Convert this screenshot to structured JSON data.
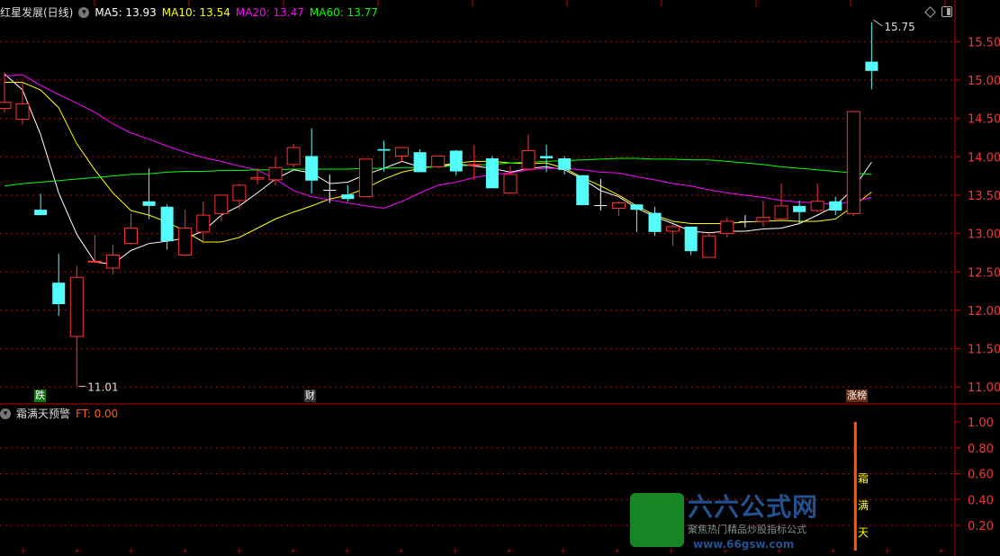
{
  "header": {
    "title": "红星发展(日线)",
    "ma5": "MA5: 13.93",
    "ma10": "MA10: 13.54",
    "ma20": "MA20: 13.47",
    "ma60": "MA60: 13.77"
  },
  "colors": {
    "up": "#ff3232",
    "down": "#54fcfc",
    "doji": "#ffffff",
    "ma5": "#ffffff",
    "ma10": "#ffff00",
    "ma20": "#ff00ff",
    "ma60": "#00ff00",
    "grid": "#c00000",
    "axis_text": "#ff3232"
  },
  "markers": {
    "high_label": "15.75",
    "low_label": "11.01",
    "tag_die": "跌",
    "tag_cai": "财",
    "tag_zhangbang": "涨榜"
  },
  "indicator": {
    "title": "霜满天预警",
    "ft": "FT: 0.00",
    "signal_text": [
      "霜",
      "满",
      "天"
    ]
  },
  "logo": {
    "title": "六六公式网",
    "tagline": "聚焦热门精品炒股指标公式",
    "url": "www.66gsw.com"
  },
  "chart_data": [
    {
      "type": "candlestick",
      "ylim": [
        10.95,
        15.85
      ],
      "yticks": [
        "15.50",
        "15.00",
        "14.50",
        "14.00",
        "13.50",
        "13.00",
        "12.50",
        "12.00",
        "11.50",
        "11.00"
      ],
      "ohlc": [
        [
          14.63,
          14.71,
          15.1,
          14.58
        ],
        [
          14.49,
          14.69,
          14.97,
          14.42
        ],
        [
          13.31,
          13.24,
          13.52,
          13.24
        ],
        [
          12.36,
          12.08,
          12.74,
          11.93
        ],
        [
          11.66,
          12.43,
          12.58,
          11.01
        ],
        [
          12.63,
          12.64,
          12.98,
          12.62
        ],
        [
          12.55,
          12.72,
          12.86,
          12.47
        ],
        [
          12.87,
          13.07,
          13.26,
          12.85
        ],
        [
          13.42,
          13.36,
          13.85,
          13.19
        ],
        [
          13.35,
          12.9,
          13.38,
          12.79
        ],
        [
          12.72,
          13.07,
          13.31,
          12.72
        ],
        [
          13.02,
          13.24,
          13.42,
          12.87
        ],
        [
          13.26,
          13.5,
          13.51,
          13.16
        ],
        [
          13.43,
          13.63,
          13.65,
          13.31
        ],
        [
          13.71,
          13.73,
          13.85,
          13.64
        ],
        [
          13.7,
          13.86,
          14.0,
          13.63
        ],
        [
          13.9,
          14.12,
          14.17,
          13.86
        ],
        [
          14.01,
          13.69,
          14.37,
          13.52
        ],
        [
          13.57,
          13.57,
          13.77,
          13.4
        ],
        [
          13.51,
          13.45,
          13.63,
          13.42
        ],
        [
          13.48,
          13.97,
          13.97,
          13.48
        ],
        [
          14.1,
          14.08,
          14.21,
          13.81
        ],
        [
          14.01,
          14.12,
          14.13,
          13.94
        ],
        [
          14.06,
          13.8,
          14.1,
          13.8
        ],
        [
          13.87,
          14.01,
          14.02,
          13.85
        ],
        [
          14.08,
          13.81,
          14.09,
          13.76
        ],
        [
          13.89,
          13.9,
          14.15,
          13.7
        ],
        [
          13.98,
          13.59,
          14.01,
          13.59
        ],
        [
          13.53,
          13.77,
          13.88,
          13.53
        ],
        [
          13.84,
          14.08,
          14.29,
          13.84
        ],
        [
          14.01,
          13.98,
          14.16,
          13.8
        ],
        [
          13.98,
          13.83,
          14.01,
          13.77
        ],
        [
          13.76,
          13.37,
          13.76,
          13.37
        ],
        [
          13.37,
          13.37,
          13.71,
          13.3
        ],
        [
          13.33,
          13.4,
          13.42,
          13.23
        ],
        [
          13.38,
          13.31,
          13.38,
          13.02
        ],
        [
          13.27,
          13.02,
          13.35,
          12.97
        ],
        [
          13.03,
          13.09,
          13.12,
          12.84
        ],
        [
          13.09,
          12.77,
          13.09,
          12.72
        ],
        [
          12.69,
          12.97,
          13.01,
          12.69
        ],
        [
          13.0,
          13.16,
          13.21,
          12.95
        ],
        [
          13.16,
          13.16,
          13.24,
          13.08
        ],
        [
          13.16,
          13.21,
          13.43,
          13.09
        ],
        [
          13.19,
          13.36,
          13.65,
          13.19
        ],
        [
          13.36,
          13.28,
          13.43,
          13.13
        ],
        [
          13.3,
          13.42,
          13.65,
          13.28
        ],
        [
          13.42,
          13.3,
          13.48,
          13.24
        ],
        [
          13.26,
          14.59,
          14.59,
          13.23
        ],
        [
          15.24,
          15.12,
          15.75,
          14.88
        ]
      ],
      "series": [
        {
          "name": "MA5",
          "values": [
            15.08,
            14.87,
            14.29,
            13.53,
            12.99,
            12.63,
            12.6,
            12.78,
            12.87,
            12.9,
            12.94,
            13.03,
            13.24,
            13.36,
            13.53,
            13.71,
            13.83,
            13.79,
            13.65,
            13.67,
            13.77,
            13.85,
            13.94,
            13.87,
            13.87,
            13.91,
            13.88,
            13.85,
            13.8,
            13.85,
            13.87,
            13.83,
            13.71,
            13.56,
            13.48,
            13.33,
            13.22,
            13.13,
            13.03,
            13.01,
            13.03,
            13.03,
            13.06,
            13.07,
            13.13,
            13.24,
            13.36,
            13.59,
            13.93
          ]
        },
        {
          "name": "MA10",
          "values": [
            14.97,
            14.97,
            14.87,
            14.64,
            14.17,
            13.83,
            13.53,
            13.3,
            13.24,
            13.15,
            13.03,
            12.89,
            12.89,
            12.95,
            13.07,
            13.19,
            13.28,
            13.36,
            13.45,
            13.5,
            13.59,
            13.71,
            13.8,
            13.85,
            13.88,
            13.92,
            13.94,
            13.94,
            13.92,
            13.91,
            13.92,
            13.85,
            13.73,
            13.62,
            13.5,
            13.36,
            13.24,
            13.16,
            13.13,
            13.13,
            13.13,
            13.15,
            13.16,
            13.17,
            13.16,
            13.16,
            13.19,
            13.36,
            13.54
          ]
        },
        {
          "name": "MA20",
          "values": [
            15.05,
            15.07,
            14.93,
            14.81,
            14.7,
            14.58,
            14.43,
            14.31,
            14.23,
            14.14,
            14.06,
            13.99,
            13.94,
            13.88,
            13.83,
            13.71,
            13.56,
            13.48,
            13.44,
            13.4,
            13.36,
            13.33,
            13.42,
            13.53,
            13.63,
            13.67,
            13.73,
            13.77,
            13.79,
            13.83,
            13.85,
            13.85,
            13.83,
            13.8,
            13.79,
            13.74,
            13.7,
            13.65,
            13.62,
            13.57,
            13.53,
            13.5,
            13.47,
            13.43,
            13.41,
            13.4,
            13.38,
            13.42,
            13.47
          ]
        },
        {
          "name": "MA60",
          "values": [
            13.62,
            13.65,
            13.67,
            13.69,
            13.71,
            13.73,
            13.75,
            13.77,
            13.78,
            13.8,
            13.81,
            13.81,
            13.82,
            13.82,
            13.83,
            13.83,
            13.84,
            13.84,
            13.84,
            13.84,
            13.85,
            13.85,
            13.86,
            13.86,
            13.87,
            13.88,
            13.89,
            13.9,
            13.92,
            13.93,
            13.94,
            13.95,
            13.96,
            13.97,
            13.98,
            13.98,
            13.97,
            13.97,
            13.96,
            13.96,
            13.94,
            13.92,
            13.9,
            13.87,
            13.85,
            13.83,
            13.81,
            13.79,
            13.77
          ]
        }
      ]
    },
    {
      "type": "bar",
      "name": "霜满天预警",
      "ylim": [
        0,
        1.1
      ],
      "yticks": [
        "1.00",
        "0.80",
        "0.60",
        "0.40",
        "0.20"
      ],
      "signal_index": 47,
      "signal_value": 1.0
    }
  ]
}
